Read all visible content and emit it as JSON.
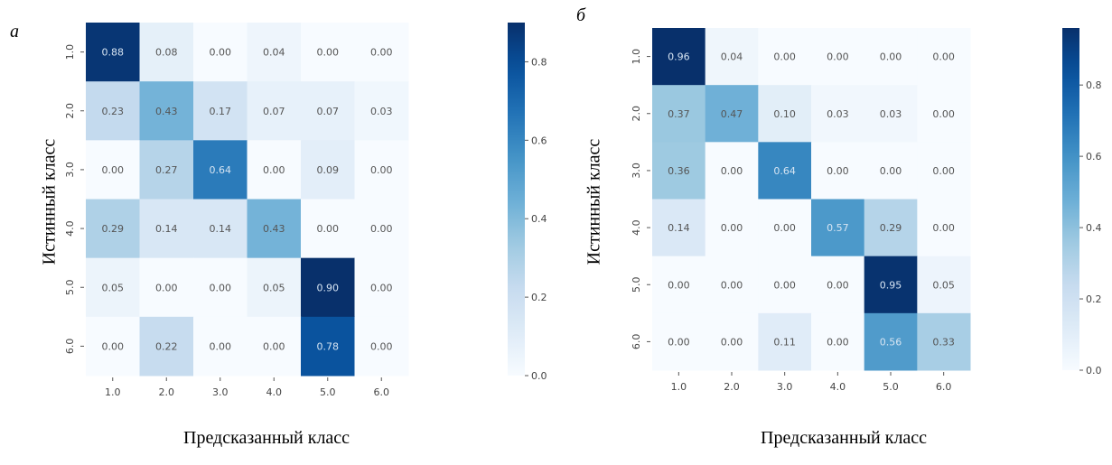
{
  "chart_data": [
    {
      "type": "heatmap",
      "panel_label": "а",
      "title": "",
      "xlabel": "Предсказанный класс",
      "ylabel": "Истинный класс",
      "x_ticks": [
        "1.0",
        "2.0",
        "3.0",
        "4.0",
        "5.0",
        "6.0"
      ],
      "y_ticks": [
        "1.0",
        "2.0",
        "3.0",
        "4.0",
        "5.0",
        "6.0"
      ],
      "values": [
        [
          0.88,
          0.08,
          0.0,
          0.04,
          0.0,
          0.0
        ],
        [
          0.23,
          0.43,
          0.17,
          0.07,
          0.07,
          0.03
        ],
        [
          0.0,
          0.27,
          0.64,
          0.0,
          0.09,
          0.0
        ],
        [
          0.29,
          0.14,
          0.14,
          0.43,
          0.0,
          0.0
        ],
        [
          0.05,
          0.0,
          0.0,
          0.05,
          0.9,
          0.0
        ],
        [
          0.0,
          0.22,
          0.0,
          0.0,
          0.78,
          0.0
        ]
      ],
      "labels": [
        [
          "0.88",
          "0.08",
          "0.00",
          "0.04",
          "0.00",
          "0.00"
        ],
        [
          "0.23",
          "0.43",
          "0.17",
          "0.07",
          "0.07",
          "0.03"
        ],
        [
          "0.00",
          "0.27",
          "0.64",
          "0.00",
          "0.09",
          "0.00"
        ],
        [
          "0.29",
          "0.14",
          "0.14",
          "0.43",
          "0.00",
          "0.00"
        ],
        [
          "0.05",
          "0.00",
          "0.00",
          "0.05",
          "0.90",
          "0.00"
        ],
        [
          "0.00",
          "0.22",
          "0.00",
          "0.00",
          "0.78",
          "0.00"
        ]
      ],
      "colormap": "Blues",
      "colorbar": {
        "range": [
          0.0,
          0.9
        ],
        "ticks": [
          "0.0",
          "0.2",
          "0.4",
          "0.6",
          "0.8"
        ],
        "tick_values": [
          0.0,
          0.2,
          0.4,
          0.6,
          0.8
        ]
      }
    },
    {
      "type": "heatmap",
      "panel_label": "б",
      "title": "",
      "xlabel": "Предсказанный класс",
      "ylabel": "Истинный класс",
      "x_ticks": [
        "1.0",
        "2.0",
        "3.0",
        "4.0",
        "5.0",
        "6.0"
      ],
      "y_ticks": [
        "1.0",
        "2.0",
        "3.0",
        "4.0",
        "5.0",
        "6.0"
      ],
      "values": [
        [
          0.96,
          0.04,
          0.0,
          0.0,
          0.0,
          0.0
        ],
        [
          0.37,
          0.47,
          0.1,
          0.03,
          0.03,
          0.0
        ],
        [
          0.36,
          0.0,
          0.64,
          0.0,
          0.0,
          0.0
        ],
        [
          0.14,
          0.0,
          0.0,
          0.57,
          0.29,
          0.0
        ],
        [
          0.0,
          0.0,
          0.0,
          0.0,
          0.95,
          0.05
        ],
        [
          0.0,
          0.0,
          0.11,
          0.0,
          0.56,
          0.33
        ]
      ],
      "labels": [
        [
          "0.96",
          "0.04",
          "0.00",
          "0.00",
          "0.00",
          "0.00"
        ],
        [
          "0.37",
          "0.47",
          "0.10",
          "0.03",
          "0.03",
          "0.00"
        ],
        [
          "0.36",
          "0.00",
          "0.64",
          "0.00",
          "0.00",
          "0.00"
        ],
        [
          "0.14",
          "0.00",
          "0.00",
          "0.57",
          "0.29",
          "0.00"
        ],
        [
          "0.00",
          "0.00",
          "0.00",
          "0.00",
          "0.95",
          "0.05"
        ],
        [
          "0.00",
          "0.00",
          "0.11",
          "0.00",
          "0.56",
          "0.33"
        ]
      ],
      "colormap": "Blues",
      "colorbar": {
        "range": [
          0.0,
          0.96
        ],
        "ticks": [
          "0.0",
          "0.2",
          "0.4",
          "0.6",
          "0.8"
        ],
        "tick_values": [
          0.0,
          0.2,
          0.4,
          0.6,
          0.8
        ]
      }
    }
  ]
}
